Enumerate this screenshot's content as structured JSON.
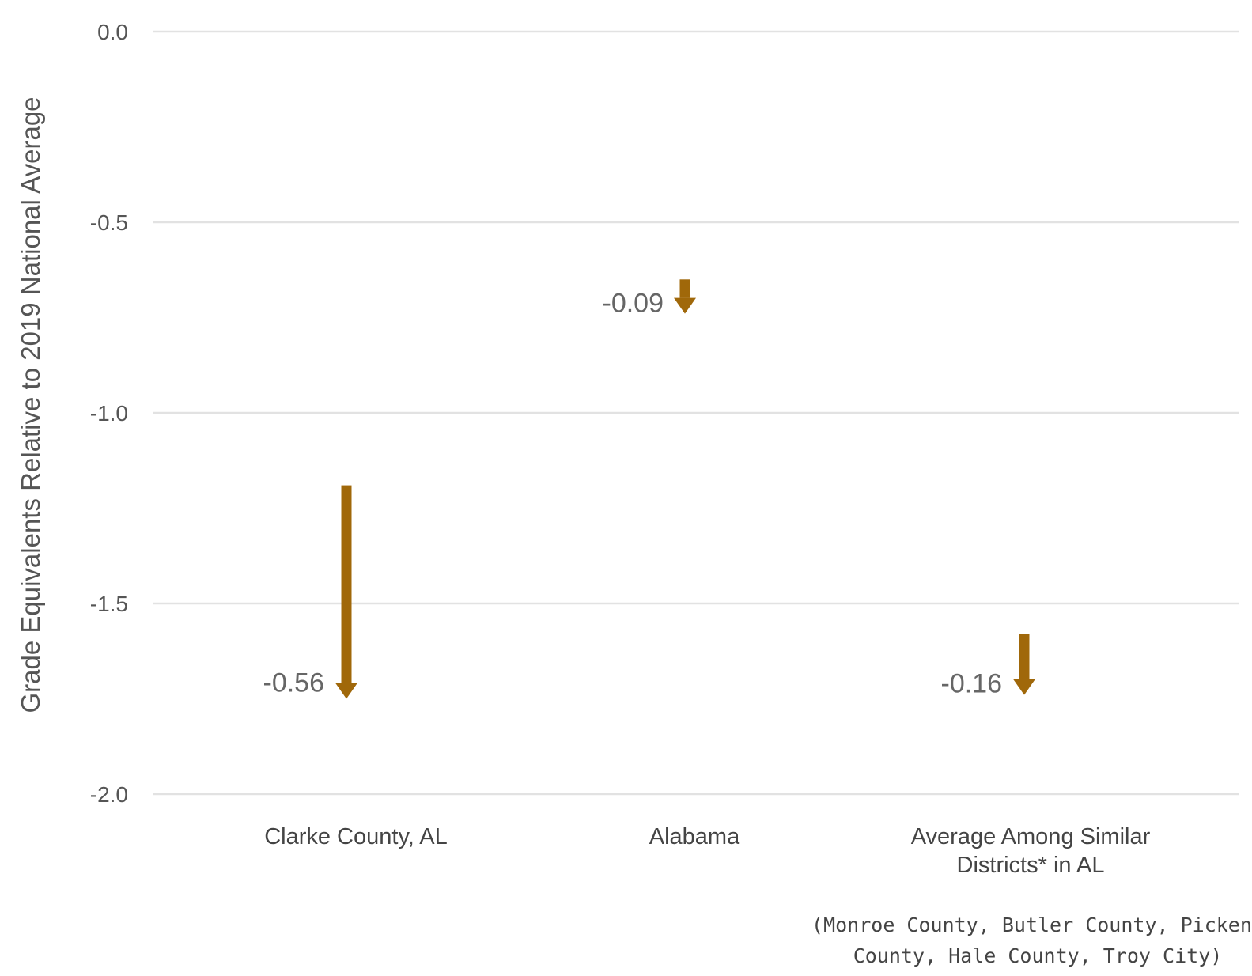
{
  "chart_data": {
    "type": "bar",
    "ylabel": "Grade Equivalents Relative to 2019 National Average",
    "ylim": [
      -2.0,
      0.0
    ],
    "yticks": [
      0.0,
      -0.5,
      -1.0,
      -1.5,
      -2.0
    ],
    "ytick_labels": [
      "0.0",
      "-0.5",
      "-1.0",
      "-1.5",
      "-2.0"
    ],
    "grid": true,
    "arrow_color": "#A0680A",
    "categories": [
      {
        "label_lines": [
          "Clarke County, AL"
        ],
        "start": -1.19,
        "end": -1.75,
        "change_label": "-0.56"
      },
      {
        "label_lines": [
          "Alabama"
        ],
        "start": -0.65,
        "end": -0.74,
        "change_label": "-0.09"
      },
      {
        "label_lines": [
          "Average Among Similar",
          "Districts* in AL"
        ],
        "start": -1.58,
        "end": -1.74,
        "change_label": "-0.16"
      }
    ],
    "footnote_lines": [
      "(Monroe County, Butler County, Pickens",
      "County, Hale County, Troy City)"
    ]
  }
}
